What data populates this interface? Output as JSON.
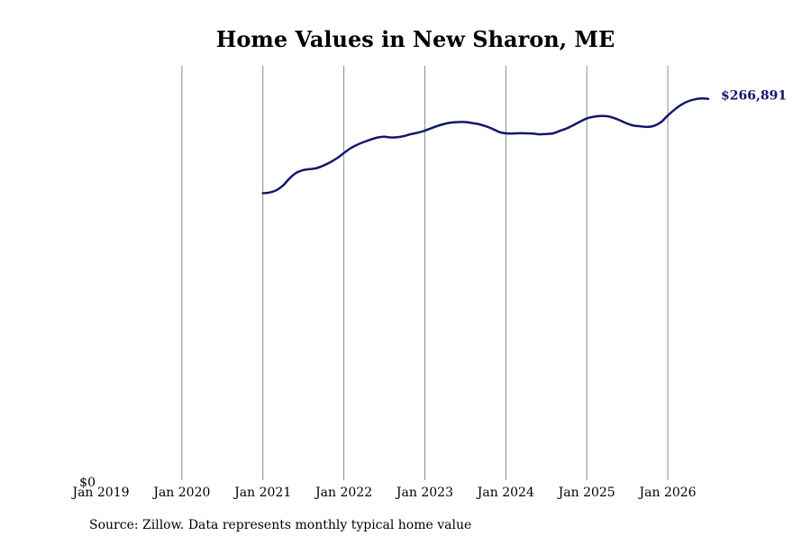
{
  "chart_data": {
    "type": "line",
    "title": "Home Values in New Sharon, ME",
    "xlabel": "",
    "ylabel": "",
    "x_tick_labels": [
      "Jan 2019",
      "Jan 2020",
      "Jan 2021",
      "Jan 2022",
      "Jan 2023",
      "Jan 2024",
      "Jan 2025",
      "Jan 2026"
    ],
    "y_tick_labels": [
      "$0"
    ],
    "xlim": [
      "2019-01",
      "2026-07"
    ],
    "ylim": [
      0,
      290000
    ],
    "grid": "vertical",
    "line_color": "#14176b",
    "end_label": "$266,891",
    "source_note": "Source: Zillow. Data represents monthly typical home value",
    "x": [
      "2021-01",
      "2021-02",
      "2021-03",
      "2021-04",
      "2021-05",
      "2021-06",
      "2021-07",
      "2021-08",
      "2021-09",
      "2021-10",
      "2021-11",
      "2021-12",
      "2022-01",
      "2022-02",
      "2022-03",
      "2022-04",
      "2022-05",
      "2022-06",
      "2022-07",
      "2022-08",
      "2022-09",
      "2022-10",
      "2022-11",
      "2022-12",
      "2023-01",
      "2023-02",
      "2023-03",
      "2023-04",
      "2023-05",
      "2023-06",
      "2023-07",
      "2023-08",
      "2023-09",
      "2023-10",
      "2023-11",
      "2023-12",
      "2024-01",
      "2024-02",
      "2024-03",
      "2024-04",
      "2024-05",
      "2024-06",
      "2024-07",
      "2024-08",
      "2024-09",
      "2024-10",
      "2024-11",
      "2024-12",
      "2025-01",
      "2025-02",
      "2025-03",
      "2025-04",
      "2025-05",
      "2025-06",
      "2025-07",
      "2025-08",
      "2025-09",
      "2025-10",
      "2025-11",
      "2025-12",
      "2026-01",
      "2026-02",
      "2026-03",
      "2026-04",
      "2026-05",
      "2026-06",
      "2026-07"
    ],
    "series": [
      {
        "values": [
          200800,
          201300,
          202900,
          206300,
          211400,
          215200,
          217000,
          217700,
          218400,
          220200,
          222500,
          225400,
          228900,
          232300,
          234800,
          236700,
          238400,
          239800,
          240300,
          239800,
          240000,
          240900,
          242200,
          243200,
          244600,
          246400,
          248100,
          249400,
          250300,
          250600,
          250600,
          249900,
          249100,
          247700,
          245900,
          243700,
          242700,
          242600,
          242800,
          242700,
          242500,
          242000,
          242300,
          242700,
          244400,
          246100,
          248400,
          250900,
          253200,
          254300,
          254800,
          254700,
          253500,
          251600,
          249500,
          248100,
          247600,
          247200,
          248000,
          250600,
          255200,
          259300,
          262700,
          265100,
          266500,
          267100,
          266891
        ]
      }
    ]
  }
}
